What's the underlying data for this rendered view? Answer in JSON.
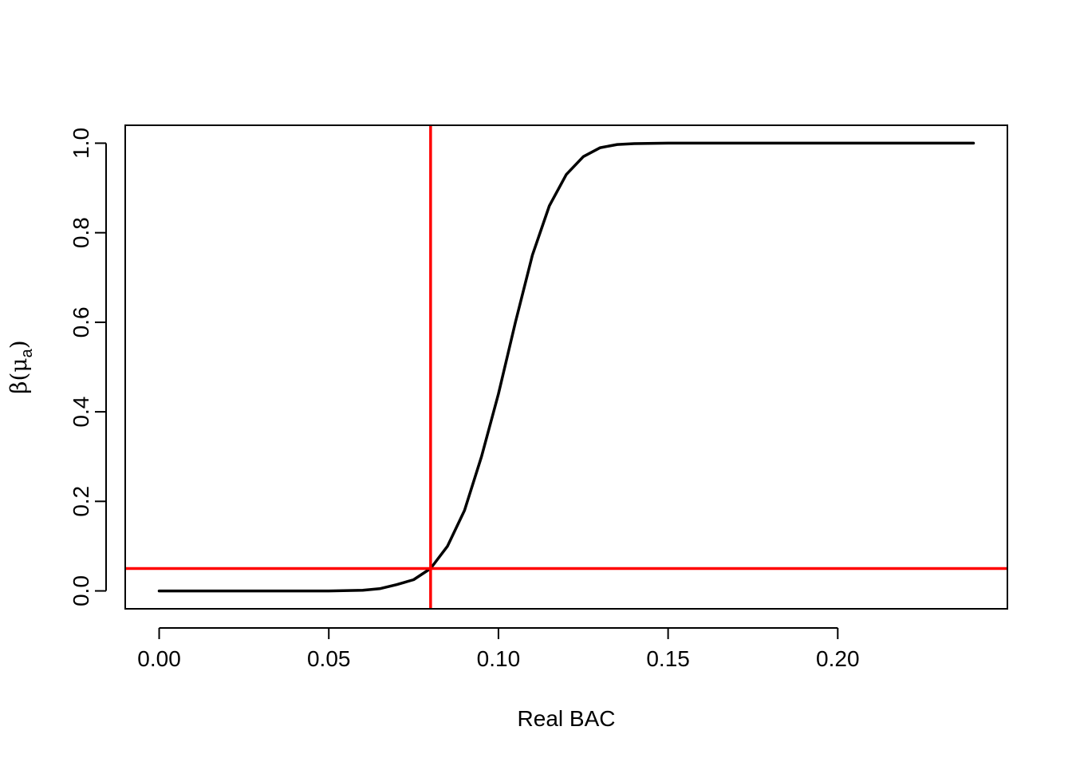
{
  "chart_data": {
    "type": "line",
    "title": "",
    "xlabel": "Real BAC",
    "ylabel": {
      "base": "β(μ",
      "subscript": "a",
      "close": ")"
    },
    "xlim": [
      -0.01,
      0.25
    ],
    "ylim": [
      -0.04,
      1.04
    ],
    "x_ticks": [
      0.0,
      0.05,
      0.1,
      0.15,
      0.2
    ],
    "x_tick_labels": [
      "0.00",
      "0.05",
      "0.10",
      "0.15",
      "0.20"
    ],
    "y_ticks": [
      0.0,
      0.2,
      0.4,
      0.6,
      0.8,
      1.0
    ],
    "y_tick_labels": [
      "0.0",
      "0.2",
      "0.4",
      "0.6",
      "0.8",
      "1.0"
    ],
    "grid": false,
    "series": [
      {
        "color": "#000000",
        "x": [
          0.0,
          0.02,
          0.04,
          0.05,
          0.06,
          0.065,
          0.07,
          0.075,
          0.08,
          0.085,
          0.09,
          0.095,
          0.1,
          0.105,
          0.11,
          0.115,
          0.12,
          0.125,
          0.13,
          0.135,
          0.14,
          0.15,
          0.17,
          0.2,
          0.24
        ],
        "y": [
          0.0,
          0.0,
          0.0,
          0.0,
          0.0015,
          0.005,
          0.014,
          0.025,
          0.05,
          0.1,
          0.18,
          0.3,
          0.44,
          0.6,
          0.75,
          0.86,
          0.93,
          0.97,
          0.99,
          0.997,
          0.999,
          1.0,
          1.0,
          1.0,
          1.0
        ]
      }
    ],
    "reference_lines": [
      {
        "orientation": "vertical",
        "value": 0.08,
        "color": "#ff0000"
      },
      {
        "orientation": "horizontal",
        "value": 0.05,
        "color": "#ff0000"
      }
    ]
  }
}
